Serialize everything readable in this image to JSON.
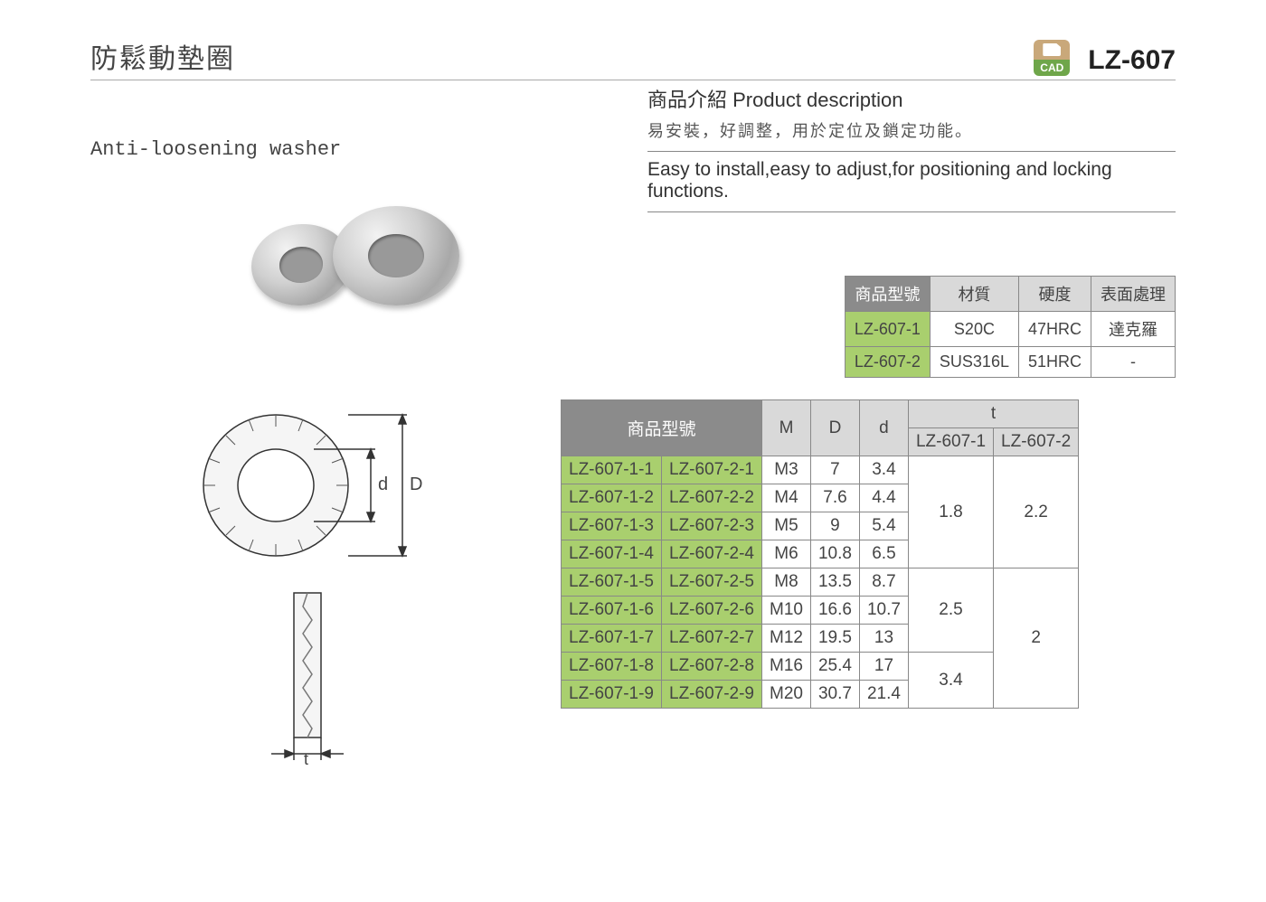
{
  "header": {
    "title_zh": "防鬆動墊圈",
    "title_en": "Anti-loosening washer",
    "product_code": "LZ-607",
    "cad_label": "CAD"
  },
  "description": {
    "heading": "商品介紹 Product description",
    "zh": "易安裝，好調整，用於定位及鎖定功能。",
    "en": "Easy to install,easy to adjust,for positioning and locking functions."
  },
  "colors": {
    "header_dark": "#8b8b8b",
    "header_light": "#d9d9d9",
    "cell_green": "#a9cf6e",
    "border": "#888888",
    "text": "#444444"
  },
  "material_table": {
    "columns": [
      "商品型號",
      "材質",
      "硬度",
      "表面處理"
    ],
    "rows": [
      {
        "model": "LZ-607-1",
        "material": "S20C",
        "hardness": "47HRC",
        "surface": "達克羅"
      },
      {
        "model": "LZ-607-2",
        "material": "SUS316L",
        "hardness": "51HRC",
        "surface": "-"
      }
    ]
  },
  "dim_labels": {
    "d": "d",
    "D": "D",
    "t": "t"
  },
  "dim_table": {
    "header": {
      "model": "商品型號",
      "M": "M",
      "D": "D",
      "d": "d",
      "t": "t",
      "t_sub1": "LZ-607-1",
      "t_sub2": "LZ-607-2"
    },
    "rows": [
      {
        "m1": "LZ-607-1-1",
        "m2": "LZ-607-2-1",
        "M": "M3",
        "D": "7",
        "d": "3.4"
      },
      {
        "m1": "LZ-607-1-2",
        "m2": "LZ-607-2-2",
        "M": "M4",
        "D": "7.6",
        "d": "4.4"
      },
      {
        "m1": "LZ-607-1-3",
        "m2": "LZ-607-2-3",
        "M": "M5",
        "D": "9",
        "d": "5.4"
      },
      {
        "m1": "LZ-607-1-4",
        "m2": "LZ-607-2-4",
        "M": "M6",
        "D": "10.8",
        "d": "6.5"
      },
      {
        "m1": "LZ-607-1-5",
        "m2": "LZ-607-2-5",
        "M": "M8",
        "D": "13.5",
        "d": "8.7"
      },
      {
        "m1": "LZ-607-1-6",
        "m2": "LZ-607-2-6",
        "M": "M10",
        "D": "16.6",
        "d": "10.7"
      },
      {
        "m1": "LZ-607-1-7",
        "m2": "LZ-607-2-7",
        "M": "M12",
        "D": "19.5",
        "d": "13"
      },
      {
        "m1": "LZ-607-1-8",
        "m2": "LZ-607-2-8",
        "M": "M16",
        "D": "25.4",
        "d": "17"
      },
      {
        "m1": "LZ-607-1-9",
        "m2": "LZ-607-2-9",
        "M": "M20",
        "D": "30.7",
        "d": "21.4"
      }
    ],
    "t_groups": {
      "t1": [
        {
          "rowspan": 4,
          "value": "1.8"
        },
        {
          "rowspan": 3,
          "value": "2.5"
        },
        {
          "rowspan": 2,
          "value": "3.4"
        }
      ],
      "t2": [
        {
          "rowspan": 4,
          "value": "2.2"
        },
        {
          "rowspan": 5,
          "value": "2"
        }
      ]
    }
  }
}
